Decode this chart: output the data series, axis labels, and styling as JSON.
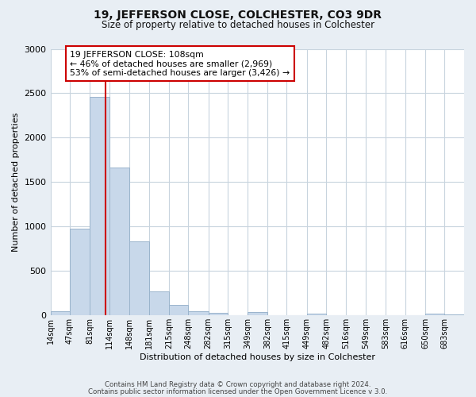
{
  "title": "19, JEFFERSON CLOSE, COLCHESTER, CO3 9DR",
  "subtitle": "Size of property relative to detached houses in Colchester",
  "xlabel": "Distribution of detached houses by size in Colchester",
  "ylabel": "Number of detached properties",
  "bar_labels": [
    "14sqm",
    "47sqm",
    "81sqm",
    "114sqm",
    "148sqm",
    "181sqm",
    "215sqm",
    "248sqm",
    "282sqm",
    "315sqm",
    "349sqm",
    "382sqm",
    "415sqm",
    "449sqm",
    "482sqm",
    "516sqm",
    "549sqm",
    "583sqm",
    "616sqm",
    "650sqm",
    "683sqm"
  ],
  "bar_values": [
    50,
    980,
    2460,
    1660,
    830,
    270,
    115,
    50,
    30,
    5,
    40,
    0,
    0,
    20,
    0,
    0,
    0,
    0,
    0,
    20,
    15
  ],
  "bar_color": "#c8d8ea",
  "bar_edgecolor": "#9ab4cc",
  "property_line_x": 108,
  "bin_edges": [
    14,
    47,
    81,
    114,
    148,
    181,
    215,
    248,
    282,
    315,
    349,
    382,
    415,
    449,
    482,
    516,
    549,
    583,
    616,
    650,
    683,
    716
  ],
  "vline_color": "#cc0000",
  "annotation_text": "19 JEFFERSON CLOSE: 108sqm\n← 46% of detached houses are smaller (2,969)\n53% of semi-detached houses are larger (3,426) →",
  "annotation_box_color": "#ffffff",
  "annotation_box_edgecolor": "#cc0000",
  "ylim": [
    0,
    3000
  ],
  "footer1": "Contains HM Land Registry data © Crown copyright and database right 2024.",
  "footer2": "Contains public sector information licensed under the Open Government Licence v 3.0.",
  "background_color": "#e8eef4",
  "plot_bg_color": "#ffffff",
  "grid_color": "#c8d4de"
}
